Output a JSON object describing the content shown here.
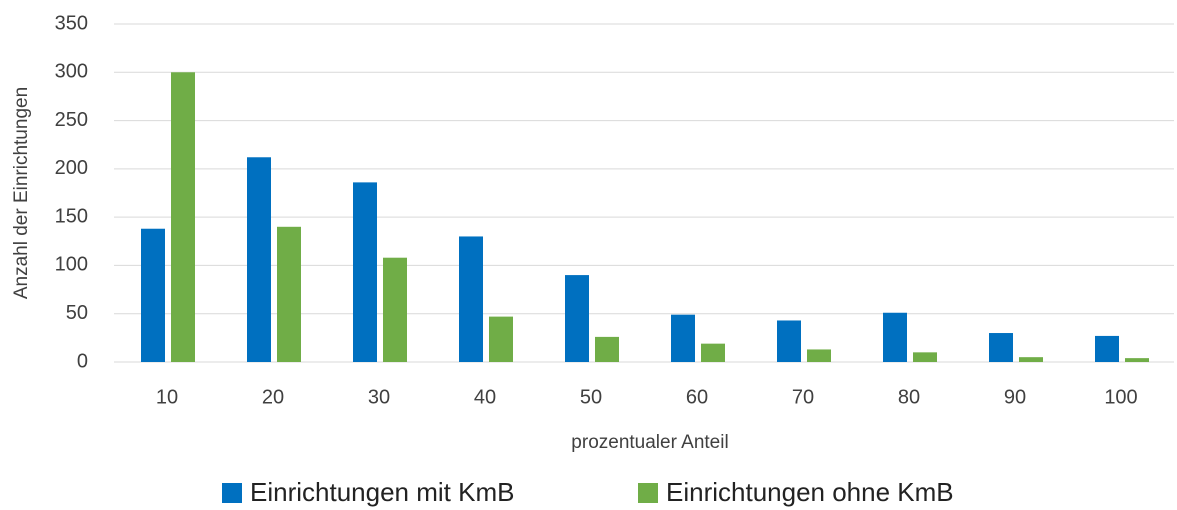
{
  "chart_data": {
    "type": "bar",
    "x_label": "prozentualer Anteil",
    "y_label": "Anzahl der Einrichtungen",
    "categories": [
      "10",
      "20",
      "30",
      "40",
      "50",
      "60",
      "70",
      "80",
      "90",
      "100"
    ],
    "series": [
      {
        "name": "Einrichtungen mit KmB",
        "color": "#0070c0",
        "values": [
          138,
          212,
          186,
          130,
          90,
          49,
          43,
          51,
          30,
          27
        ]
      },
      {
        "name": "Einrichtungen ohne KmB",
        "color": "#70ad47",
        "values": [
          300,
          140,
          108,
          47,
          26,
          19,
          13,
          10,
          5,
          4
        ]
      }
    ],
    "ylim": [
      0,
      350
    ],
    "yticks": [
      0,
      50,
      100,
      150,
      200,
      250,
      300,
      350
    ],
    "grid": true,
    "legend": "bottom"
  }
}
